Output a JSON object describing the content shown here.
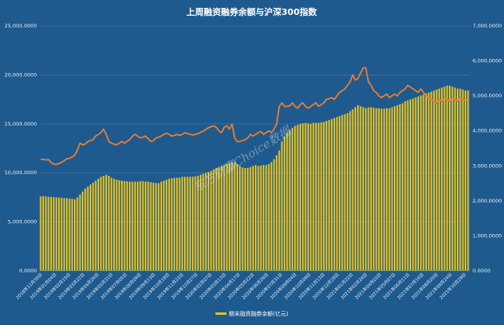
{
  "chart_data": {
    "type": "bar",
    "title": "上周融资融券余额与沪深300指数",
    "watermark": "东方财富Choice数据",
    "left_axis": {
      "ylim": [
        0,
        25000
      ],
      "ticks": [
        "0.0000",
        "5,000.0000",
        "10,000.0000",
        "15,000.0000",
        "20,000.0000",
        "25,000.0000"
      ]
    },
    "right_axis": {
      "ylim": [
        0,
        7000
      ],
      "ticks": [
        "0.0000",
        "1,000.0000",
        "2,000.0000",
        "3,000.0000",
        "4,000.0000",
        "5,000.0000",
        "6,000.0000",
        "7,000.0000"
      ]
    },
    "x_tick_labels": [
      "2018年11月30日",
      "2019年01月04日",
      "2019年02月15日",
      "2019年03月22日",
      "2019年04月26日",
      "2019年05月31日",
      "2019年07月05日",
      "2019年08月09日",
      "2019年09月13日",
      "2019年10月18日",
      "2019年11月22日",
      "2019年12月27日",
      "2020年02月07日",
      "2020年03月13日",
      "2020年04月17日",
      "2020年05月22日",
      "2020年06月26日",
      "2020年07月31日",
      "2020年09月04日",
      "2020年10月09日",
      "2020年11月13日",
      "2020年12月18日",
      "2021年01月22日",
      "2021年02月26日",
      "2021年04月02日",
      "2021年05月07日",
      "2021年06月11日",
      "2021年07月16日",
      "2021年08月20日",
      "2021年09月24日",
      "2021年10月29日"
    ],
    "legend": [
      {
        "name": "期末融资融券余额(亿元)",
        "color": "#e8c21a",
        "type": "bar"
      }
    ],
    "series": [
      {
        "name": "期末融资融券余额(亿元)",
        "axis": "left",
        "color": "#e8c21a",
        "values": [
          7600,
          7620,
          7590,
          7560,
          7540,
          7520,
          7500,
          7480,
          7460,
          7430,
          7410,
          7380,
          7350,
          7300,
          7500,
          7800,
          8100,
          8400,
          8600,
          8800,
          9000,
          9200,
          9400,
          9600,
          9700,
          9800,
          9700,
          9500,
          9400,
          9300,
          9250,
          9200,
          9150,
          9150,
          9100,
          9100,
          9100,
          9100,
          9150,
          9150,
          9100,
          9100,
          9050,
          9000,
          8950,
          8950,
          9100,
          9200,
          9300,
          9400,
          9450,
          9500,
          9500,
          9500,
          9600,
          9600,
          9600,
          9600,
          9600,
          9650,
          9700,
          9800,
          9900,
          10000,
          10100,
          10200,
          10350,
          10500,
          10600,
          10700,
          10800,
          10900,
          11000,
          11100,
          11100,
          10900,
          10700,
          10550,
          10500,
          10500,
          10600,
          10700,
          10800,
          10700,
          10750,
          10800,
          10800,
          10900,
          11100,
          11400,
          11800,
          12300,
          13200,
          13700,
          14100,
          14400,
          14600,
          14800,
          14900,
          15000,
          15050,
          15100,
          15050,
          15000,
          15100,
          15100,
          15100,
          15150,
          15200,
          15300,
          15400,
          15500,
          15600,
          15700,
          15800,
          15900,
          16000,
          16100,
          16300,
          16500,
          16700,
          16900,
          16800,
          16700,
          16600,
          16700,
          16700,
          16650,
          16600,
          16600,
          16550,
          16550,
          16600,
          16600,
          16700,
          16800,
          16900,
          17000,
          17100,
          17300,
          17400,
          17500,
          17600,
          17700,
          17800,
          17900,
          18000,
          18100,
          18200,
          18300,
          18400,
          18500,
          18600,
          18700,
          18800,
          18900,
          18900,
          18800,
          18700,
          18600,
          18600,
          18500,
          18400,
          18400
        ]
      },
      {
        "name": "沪深300指数",
        "axis": "right",
        "color": "#ef7d2e",
        "values": [
          3180,
          3190,
          3170,
          3180,
          3100,
          3050,
          3040,
          3070,
          3100,
          3150,
          3200,
          3220,
          3250,
          3300,
          3450,
          3650,
          3600,
          3620,
          3700,
          3720,
          3750,
          3850,
          3900,
          3950,
          4050,
          3900,
          3700,
          3650,
          3620,
          3600,
          3650,
          3700,
          3650,
          3700,
          3750,
          3850,
          3900,
          3850,
          3800,
          3820,
          3850,
          3780,
          3700,
          3720,
          3800,
          3820,
          3850,
          3900,
          3930,
          3900,
          3850,
          3870,
          3900,
          3870,
          3900,
          3950,
          3920,
          3900,
          3880,
          3900,
          3920,
          3960,
          3990,
          4040,
          4090,
          4120,
          4140,
          4100,
          4000,
          3950,
          4100,
          4150,
          4050,
          4200,
          3800,
          3690,
          3700,
          3720,
          3750,
          3800,
          3900,
          3850,
          3900,
          3950,
          3980,
          3900,
          3950,
          4000,
          3950,
          4050,
          4200,
          4700,
          4800,
          4700,
          4700,
          4720,
          4800,
          4700,
          4650,
          4750,
          4800,
          4700,
          4650,
          4700,
          4750,
          4800,
          4700,
          4750,
          4800,
          4900,
          4920,
          4950,
          4900,
          5000,
          5100,
          5150,
          5200,
          5300,
          5400,
          5600,
          5450,
          5500,
          5650,
          5800,
          5800,
          5400,
          5300,
          5150,
          5100,
          5000,
          4950,
          5000,
          5050,
          4950,
          5000,
          5050,
          5000,
          5100,
          5150,
          5200,
          5300,
          5250,
          5200,
          5150,
          5100,
          5200,
          5100,
          5000,
          4950,
          4900,
          4850,
          4800,
          4900,
          4850,
          4950,
          4900,
          4850,
          4950,
          4900,
          4850,
          4950,
          4900,
          4850,
          4900
        ]
      }
    ]
  }
}
